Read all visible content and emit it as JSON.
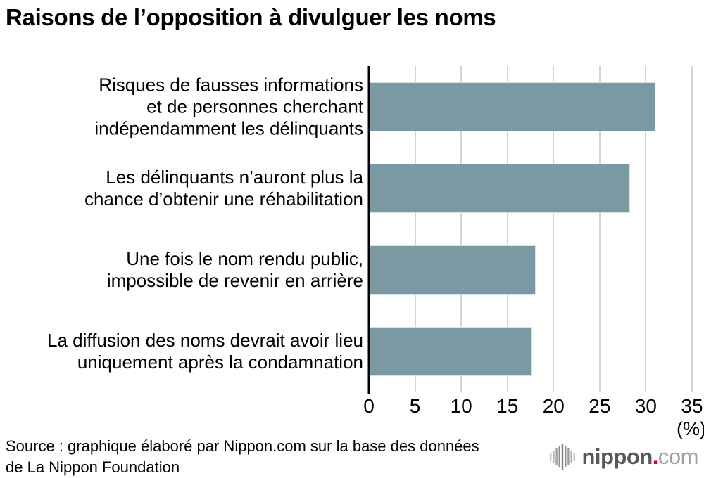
{
  "title": "Raisons de l’opposition à divulguer les noms",
  "chart_data": {
    "type": "bar",
    "orientation": "horizontal",
    "title": "Raisons de l’opposition à divulguer les noms",
    "categories": [
      [
        "Risques de fausses informations",
        "et de personnes cherchant",
        "indépendamment les délinquants"
      ],
      [
        "Les délinquants n’auront plus la",
        "chance d’obtenir une réhabilitation"
      ],
      [
        "Une fois le nom rendu public,",
        "impossible de revenir en arrière"
      ],
      [
        "La diffusion des noms devrait avoir lieu",
        "uniquement après la condamnation"
      ]
    ],
    "values": [
      31.0,
      28.3,
      18.1,
      17.6
    ],
    "xlabel": "(%)",
    "xlim": [
      0,
      35
    ],
    "xticks": [
      0,
      5,
      10,
      15,
      20,
      25,
      30,
      35
    ],
    "grid": true,
    "legend": false,
    "bar_color": "#7b99a3",
    "gridline_color": "#d4d4d4",
    "axis_color": "#000000"
  },
  "x_unit_label": "(%)",
  "source": {
    "lines": [
      "Source : graphique élaboré par Nippon.com sur la base des données",
      "de La Nippon Foundation"
    ]
  },
  "logo": {
    "icon": "waveform-icon",
    "name": "nippon",
    "dot": ".",
    "tld": "com",
    "name_color": "#595757",
    "dot_color": "#e60012",
    "tld_color": "#9fa0a0"
  }
}
